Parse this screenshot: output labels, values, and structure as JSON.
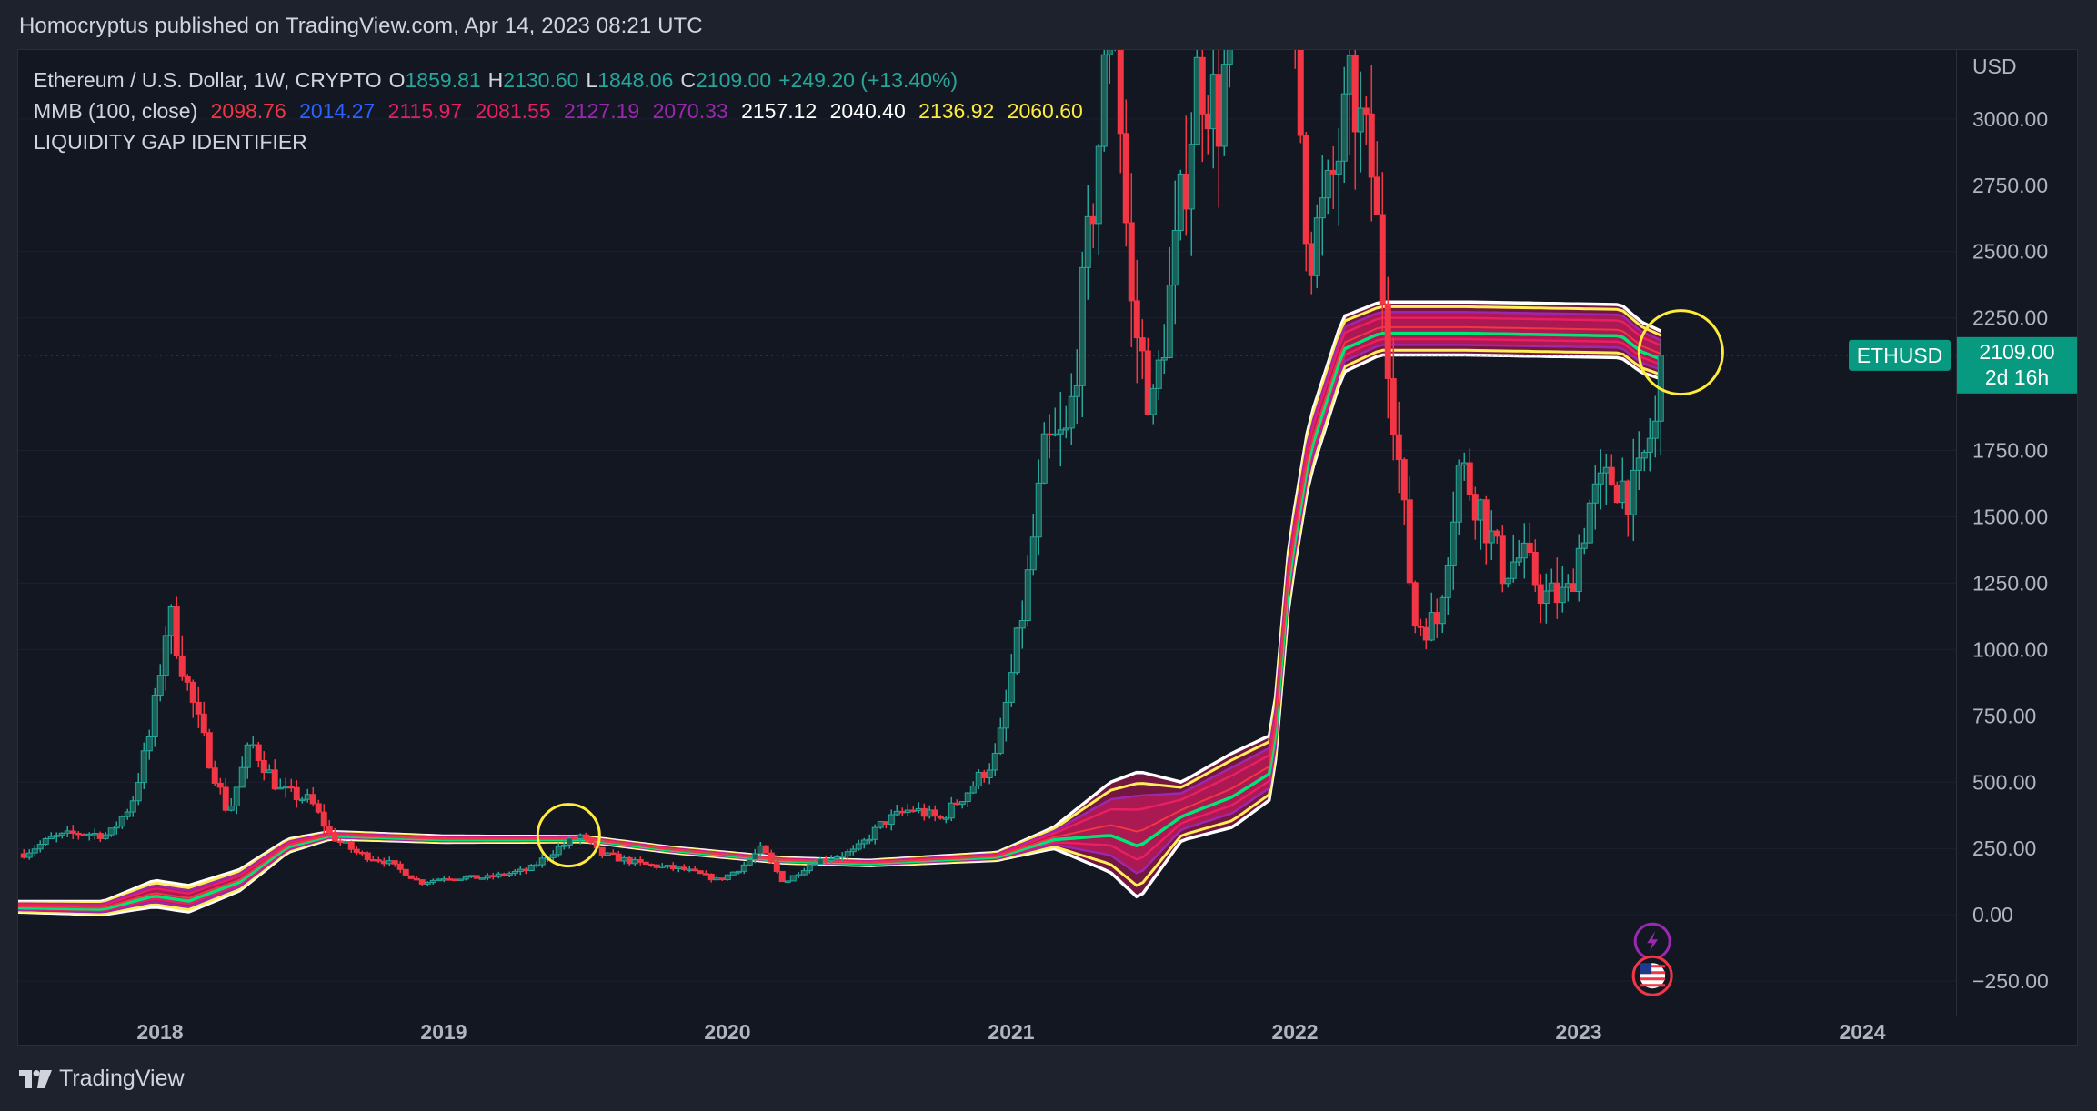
{
  "header": {
    "published": "Homocryptus published on TradingView.com, Apr 14, 2023 08:21 UTC"
  },
  "legend": {
    "symbol": "Ethereum / U.S. Dollar, 1W, CRYPTO",
    "o_label": "O",
    "o_value": "1859.81",
    "h_label": "H",
    "h_value": "2130.60",
    "l_label": "L",
    "l_value": "1848.06",
    "c_label": "C",
    "c_value": "2109.00",
    "change": "+249.20 (+13.40%)",
    "indicator": "MMB (100, close)",
    "mmb_values": [
      {
        "value": "2098.76",
        "color": "#f23645"
      },
      {
        "value": "2014.27",
        "color": "#2962ff"
      },
      {
        "value": "2115.97",
        "color": "#e91e63"
      },
      {
        "value": "2081.55",
        "color": "#e91e63"
      },
      {
        "value": "2127.19",
        "color": "#9c27b0"
      },
      {
        "value": "2070.33",
        "color": "#9c27b0"
      },
      {
        "value": "2157.12",
        "color": "#ffffff"
      },
      {
        "value": "2040.40",
        "color": "#ffffff"
      },
      {
        "value": "2136.92",
        "color": "#ffeb3b"
      },
      {
        "value": "2060.60",
        "color": "#ffeb3b"
      }
    ],
    "indicator2": "LIQUIDITY GAP IDENTIFIER"
  },
  "colors": {
    "up": "#26a69a",
    "down": "#f23645",
    "accent": "#089981",
    "mmb_yellow": "#ffee58",
    "mmb_white": "#ffffff",
    "mmb_pink": "#e91e63",
    "mmb_purple": "#9c27b0",
    "mmb_green": "#00e676"
  },
  "price_tag": {
    "symbol": "ETHUSD",
    "price": "2109.00",
    "countdown": "2d 16h"
  },
  "footer": {
    "brand": "TradingView"
  },
  "chart_data": {
    "type": "candlestick",
    "symbol": "ETHUSD",
    "interval": "1W",
    "currency": "USD",
    "y_axis_labels": [
      "3000.00",
      "2750.00",
      "2500.00",
      "2250.00",
      "1750.00",
      "1500.00",
      "1250.00",
      "1000.00",
      "750.00",
      "500.00",
      "250.00",
      "0.00",
      "−250.00"
    ],
    "y_ticks": [
      3000,
      2750,
      2500,
      2250,
      1750,
      1500,
      1250,
      1000,
      750,
      500,
      250,
      0,
      -250
    ],
    "ylim": [
      -380,
      3260
    ],
    "x_axis_labels": [
      "2018",
      "2019",
      "2020",
      "2021",
      "2022",
      "2023",
      "2024"
    ],
    "x_ticks": [
      2018.0,
      2019.0,
      2020.0,
      2021.0,
      2022.0,
      2023.0,
      2024.0
    ],
    "xlim": [
      2017.5,
      2024.33
    ],
    "last_price": 2109.0,
    "price_keyframes": [
      {
        "t": 2017.52,
        "p": 230
      },
      {
        "t": 2017.62,
        "p": 290
      },
      {
        "t": 2017.72,
        "p": 310
      },
      {
        "t": 2017.82,
        "p": 300
      },
      {
        "t": 2017.9,
        "p": 420
      },
      {
        "t": 2017.97,
        "p": 700
      },
      {
        "t": 2018.03,
        "p": 1150
      },
      {
        "t": 2018.1,
        "p": 850
      },
      {
        "t": 2018.17,
        "p": 600
      },
      {
        "t": 2018.24,
        "p": 380
      },
      {
        "t": 2018.32,
        "p": 650
      },
      {
        "t": 2018.42,
        "p": 470
      },
      {
        "t": 2018.53,
        "p": 430
      },
      {
        "t": 2018.6,
        "p": 300
      },
      {
        "t": 2018.7,
        "p": 230
      },
      {
        "t": 2018.8,
        "p": 200
      },
      {
        "t": 2018.92,
        "p": 120
      },
      {
        "t": 2019.0,
        "p": 140
      },
      {
        "t": 2019.15,
        "p": 140
      },
      {
        "t": 2019.3,
        "p": 170
      },
      {
        "t": 2019.4,
        "p": 250
      },
      {
        "t": 2019.48,
        "p": 300
      },
      {
        "t": 2019.55,
        "p": 230
      },
      {
        "t": 2019.7,
        "p": 190
      },
      {
        "t": 2019.85,
        "p": 170
      },
      {
        "t": 2019.97,
        "p": 130
      },
      {
        "t": 2020.05,
        "p": 180
      },
      {
        "t": 2020.12,
        "p": 250
      },
      {
        "t": 2020.2,
        "p": 120
      },
      {
        "t": 2020.3,
        "p": 200
      },
      {
        "t": 2020.45,
        "p": 240
      },
      {
        "t": 2020.55,
        "p": 350
      },
      {
        "t": 2020.65,
        "p": 400
      },
      {
        "t": 2020.75,
        "p": 360
      },
      {
        "t": 2020.85,
        "p": 470
      },
      {
        "t": 2020.95,
        "p": 600
      },
      {
        "t": 2021.05,
        "p": 1200
      },
      {
        "t": 2021.12,
        "p": 1750
      },
      {
        "t": 2021.2,
        "p": 1800
      },
      {
        "t": 2021.28,
        "p": 2600
      },
      {
        "t": 2021.36,
        "p": 3500
      },
      {
        "t": 2021.42,
        "p": 2300
      },
      {
        "t": 2021.5,
        "p": 1900
      },
      {
        "t": 2021.58,
        "p": 2500
      },
      {
        "t": 2021.66,
        "p": 3200
      },
      {
        "t": 2021.74,
        "p": 3000
      },
      {
        "t": 2021.82,
        "p": 4200
      },
      {
        "t": 2021.9,
        "p": 4500
      },
      {
        "t": 2021.97,
        "p": 3700
      },
      {
        "t": 2022.05,
        "p": 2500
      },
      {
        "t": 2022.12,
        "p": 2700
      },
      {
        "t": 2022.2,
        "p": 3100
      },
      {
        "t": 2022.27,
        "p": 2800
      },
      {
        "t": 2022.34,
        "p": 2000
      },
      {
        "t": 2022.42,
        "p": 1100
      },
      {
        "t": 2022.5,
        "p": 1100
      },
      {
        "t": 2022.58,
        "p": 1700
      },
      {
        "t": 2022.65,
        "p": 1550
      },
      {
        "t": 2022.73,
        "p": 1300
      },
      {
        "t": 2022.8,
        "p": 1350
      },
      {
        "t": 2022.88,
        "p": 1200
      },
      {
        "t": 2022.96,
        "p": 1200
      },
      {
        "t": 2023.04,
        "p": 1550
      },
      {
        "t": 2023.12,
        "p": 1650
      },
      {
        "t": 2023.2,
        "p": 1580
      },
      {
        "t": 2023.25,
        "p": 1800
      },
      {
        "t": 2023.28,
        "p": 1860
      },
      {
        "t": 2023.29,
        "p": 2109
      }
    ],
    "mmb_keyframes": [
      {
        "t": 2017.5,
        "m": 30,
        "s": 20
      },
      {
        "t": 2017.8,
        "m": 25,
        "s": 25
      },
      {
        "t": 2017.98,
        "m": 80,
        "s": 50
      },
      {
        "t": 2018.1,
        "m": 60,
        "s": 50
      },
      {
        "t": 2018.28,
        "m": 130,
        "s": 40
      },
      {
        "t": 2018.45,
        "m": 260,
        "s": 25
      },
      {
        "t": 2018.6,
        "m": 300,
        "s": 14
      },
      {
        "t": 2019.0,
        "m": 285,
        "s": 12
      },
      {
        "t": 2019.5,
        "m": 285,
        "s": 10
      },
      {
        "t": 2019.8,
        "m": 245,
        "s": 10
      },
      {
        "t": 2020.2,
        "m": 205,
        "s": 10
      },
      {
        "t": 2020.5,
        "m": 195,
        "s": 10
      },
      {
        "t": 2020.95,
        "m": 220,
        "s": 15
      },
      {
        "t": 2021.15,
        "m": 290,
        "s": 40
      },
      {
        "t": 2021.35,
        "m": 330,
        "s": 170
      },
      {
        "t": 2021.45,
        "m": 300,
        "s": 240
      },
      {
        "t": 2021.6,
        "m": 390,
        "s": 110
      },
      {
        "t": 2021.78,
        "m": 470,
        "s": 140
      },
      {
        "t": 2021.92,
        "m": 560,
        "s": 120
      },
      {
        "t": 2021.98,
        "m": 1300,
        "s": 110
      },
      {
        "t": 2022.05,
        "m": 1750,
        "s": 110
      },
      {
        "t": 2022.17,
        "m": 2150,
        "s": 105
      },
      {
        "t": 2022.3,
        "m": 2210,
        "s": 100
      },
      {
        "t": 2022.6,
        "m": 2210,
        "s": 100
      },
      {
        "t": 2023.15,
        "m": 2200,
        "s": 100
      },
      {
        "t": 2023.22,
        "m": 2140,
        "s": 95
      },
      {
        "t": 2023.29,
        "m": 2110,
        "s": 90
      }
    ],
    "annotations": [
      {
        "type": "circle",
        "t": 2019.44,
        "p": 300,
        "color": "#ffeb3b"
      },
      {
        "type": "circle",
        "t": 2023.36,
        "p": 2120,
        "color": "#ffeb3b"
      }
    ]
  }
}
